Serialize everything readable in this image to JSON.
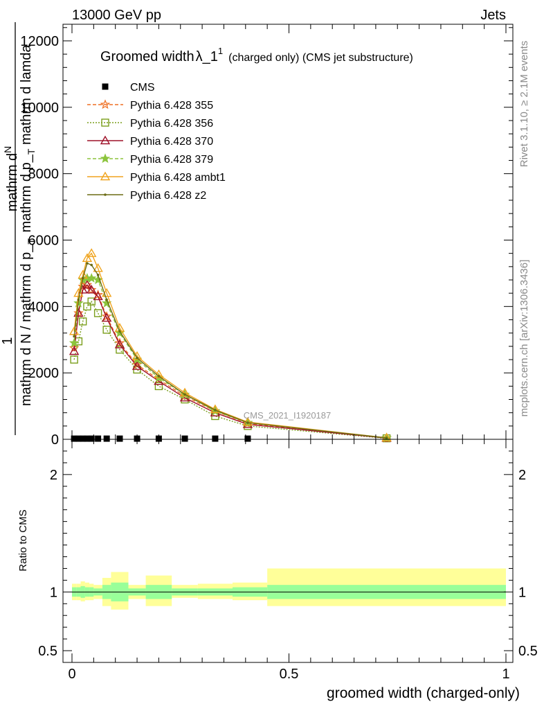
{
  "header": {
    "energy_label": "13000 GeV pp",
    "category_label": "Jets"
  },
  "side_labels": {
    "rivet": "Rivet 3.1.10, ≥ 2.1M events",
    "mcplots": "mcplots.cern.ch [arXiv:1306.3436]"
  },
  "watermark": "CMS_2021_I1920187",
  "colors": {
    "cms": "#000000",
    "p355": "#ee6f22",
    "p356": "#7a9e1b",
    "p370": "#9e1028",
    "p379": "#8cc43c",
    "ambt1": "#f0a41e",
    "z2": "#6b6b14",
    "band_inner": "#99ff99",
    "band_outer": "#ffff99"
  },
  "chart_data": [
    {
      "type": "line",
      "title_main": "Groomed width",
      "title_symbol": "λ_1",
      "title_sup": "1",
      "title_suffix": "(charged only) (CMS jet substructure)",
      "ylabel_top": "mathrm d",
      "ylabel_n": "N",
      "ylabel_line2": "mathrm d p_",
      "ylabel_sub": "T",
      "ylabel_line2b": " mathrm d lamda",
      "ylabel_one": "1",
      "ylabel_bottom": "mathrm d N / mathrm d p_",
      "ylabel_bottom_sub": "T",
      "xlim": [
        0.0,
        1.0
      ],
      "ylim": [
        0,
        12500
      ],
      "yticks": [
        {
          "value": 0,
          "label": "0"
        },
        {
          "value": 2000,
          "label": "2000"
        },
        {
          "value": 4000,
          "label": "4000"
        },
        {
          "value": 6000,
          "label": "6000"
        },
        {
          "value": 8000,
          "label": "8000"
        },
        {
          "value": 10000,
          "label": "10000"
        },
        {
          "value": 12000,
          "label": "12000"
        }
      ],
      "legend_position": "top-left",
      "series": [
        {
          "name": "CMS",
          "key": "cms",
          "marker": "square-filled",
          "style": "none",
          "x": [
            0.005,
            0.015,
            0.025,
            0.035,
            0.045,
            0.06,
            0.08,
            0.11,
            0.15,
            0.2,
            0.26,
            0.33,
            0.405
          ],
          "y": [
            20,
            20,
            20,
            20,
            20,
            20,
            20,
            20,
            20,
            20,
            20,
            20,
            20
          ]
        },
        {
          "name": "Pythia 6.428 355",
          "key": "p355",
          "marker": "star-open",
          "style": "dashed",
          "x": [
            0.005,
            0.015,
            0.025,
            0.035,
            0.045,
            0.06,
            0.08,
            0.11,
            0.15,
            0.2,
            0.26,
            0.33,
            0.405,
            0.725
          ],
          "y": [
            2750,
            3800,
            4600,
            4650,
            4500,
            4350,
            3700,
            2900,
            2250,
            1800,
            1300,
            850,
            480,
            40
          ]
        },
        {
          "name": "Pythia 6.428 356",
          "key": "p356",
          "marker": "square-open",
          "style": "dotted",
          "x": [
            0.005,
            0.015,
            0.025,
            0.035,
            0.045,
            0.06,
            0.08,
            0.11,
            0.15,
            0.2,
            0.26,
            0.33,
            0.405,
            0.725
          ],
          "y": [
            2400,
            2950,
            3550,
            4000,
            4150,
            3800,
            3300,
            2700,
            2100,
            1600,
            1200,
            700,
            400,
            30
          ]
        },
        {
          "name": "Pythia 6.428 370",
          "key": "p370",
          "marker": "triangle-open",
          "style": "solid",
          "x": [
            0.005,
            0.015,
            0.025,
            0.035,
            0.045,
            0.06,
            0.08,
            0.11,
            0.15,
            0.2,
            0.26,
            0.33,
            0.405,
            0.725
          ],
          "y": [
            2650,
            3800,
            4500,
            4650,
            4500,
            4300,
            3650,
            2850,
            2200,
            1750,
            1250,
            800,
            450,
            35
          ]
        },
        {
          "name": "Pythia 6.428 379",
          "key": "p379",
          "marker": "star-filled",
          "style": "dashed",
          "x": [
            0.005,
            0.015,
            0.025,
            0.035,
            0.045,
            0.06,
            0.08,
            0.11,
            0.15,
            0.2,
            0.26,
            0.33,
            0.405,
            0.725
          ],
          "y": [
            2900,
            4100,
            4800,
            4850,
            4850,
            4800,
            4100,
            3200,
            2400,
            1850,
            1350,
            850,
            500,
            40
          ]
        },
        {
          "name": "Pythia 6.428 ambt1",
          "key": "ambt1",
          "marker": "triangle-open",
          "style": "solid",
          "x": [
            0.005,
            0.015,
            0.025,
            0.035,
            0.045,
            0.06,
            0.08,
            0.11,
            0.15,
            0.2,
            0.26,
            0.33,
            0.405,
            0.725
          ],
          "y": [
            3250,
            4400,
            4950,
            5450,
            5600,
            5150,
            4400,
            3350,
            2500,
            1950,
            1400,
            900,
            520,
            45
          ]
        },
        {
          "name": "Pythia 6.428 z2",
          "key": "z2",
          "marker": "dot",
          "style": "solid",
          "x": [
            0.005,
            0.015,
            0.025,
            0.035,
            0.045,
            0.06,
            0.08,
            0.11,
            0.15,
            0.2,
            0.26,
            0.33,
            0.405,
            0.725
          ],
          "y": [
            3100,
            4200,
            4850,
            5300,
            5250,
            4950,
            4200,
            3250,
            2450,
            1900,
            1350,
            880,
            500,
            42
          ]
        }
      ]
    },
    {
      "type": "area",
      "ylabel": "Ratio to CMS",
      "xlabel": "groomed width (charged-only)",
      "xlim": [
        0.0,
        1.0
      ],
      "ylim": [
        0.4,
        2.3
      ],
      "yticks": [
        {
          "value": 0.5,
          "label": "0.5"
        },
        {
          "value": 1,
          "label": "1"
        },
        {
          "value": 2,
          "label": "2"
        }
      ],
      "xticks": [
        {
          "value": 0,
          "label": "0"
        },
        {
          "value": 0.5,
          "label": "0.5"
        },
        {
          "value": 1,
          "label": "1"
        }
      ],
      "bands": [
        {
          "x0": 0.0,
          "x1": 0.01,
          "inner": [
            0.96,
            1.04
          ],
          "outer": [
            0.93,
            1.07
          ]
        },
        {
          "x0": 0.01,
          "x1": 0.02,
          "inner": [
            0.96,
            1.04
          ],
          "outer": [
            0.93,
            1.07
          ]
        },
        {
          "x0": 0.02,
          "x1": 0.03,
          "inner": [
            0.95,
            1.05
          ],
          "outer": [
            0.92,
            1.09
          ]
        },
        {
          "x0": 0.03,
          "x1": 0.04,
          "inner": [
            0.96,
            1.04
          ],
          "outer": [
            0.93,
            1.08
          ]
        },
        {
          "x0": 0.04,
          "x1": 0.05,
          "inner": [
            0.96,
            1.04
          ],
          "outer": [
            0.93,
            1.07
          ]
        },
        {
          "x0": 0.05,
          "x1": 0.07,
          "inner": [
            0.97,
            1.03
          ],
          "outer": [
            0.94,
            1.06
          ]
        },
        {
          "x0": 0.07,
          "x1": 0.09,
          "inner": [
            0.94,
            1.06
          ],
          "outer": [
            0.88,
            1.12
          ]
        },
        {
          "x0": 0.09,
          "x1": 0.13,
          "inner": [
            0.92,
            1.08
          ],
          "outer": [
            0.85,
            1.17
          ]
        },
        {
          "x0": 0.13,
          "x1": 0.17,
          "inner": [
            0.97,
            1.03
          ],
          "outer": [
            0.94,
            1.06
          ]
        },
        {
          "x0": 0.17,
          "x1": 0.23,
          "inner": [
            0.94,
            1.06
          ],
          "outer": [
            0.88,
            1.14
          ]
        },
        {
          "x0": 0.23,
          "x1": 0.29,
          "inner": [
            0.97,
            1.03
          ],
          "outer": [
            0.95,
            1.06
          ]
        },
        {
          "x0": 0.29,
          "x1": 0.37,
          "inner": [
            0.97,
            1.03
          ],
          "outer": [
            0.94,
            1.07
          ]
        },
        {
          "x0": 0.37,
          "x1": 0.45,
          "inner": [
            0.96,
            1.04
          ],
          "outer": [
            0.93,
            1.08
          ]
        },
        {
          "x0": 0.45,
          "x1": 1.0,
          "inner": [
            0.94,
            1.06
          ],
          "outer": [
            0.88,
            1.2
          ]
        }
      ]
    }
  ]
}
